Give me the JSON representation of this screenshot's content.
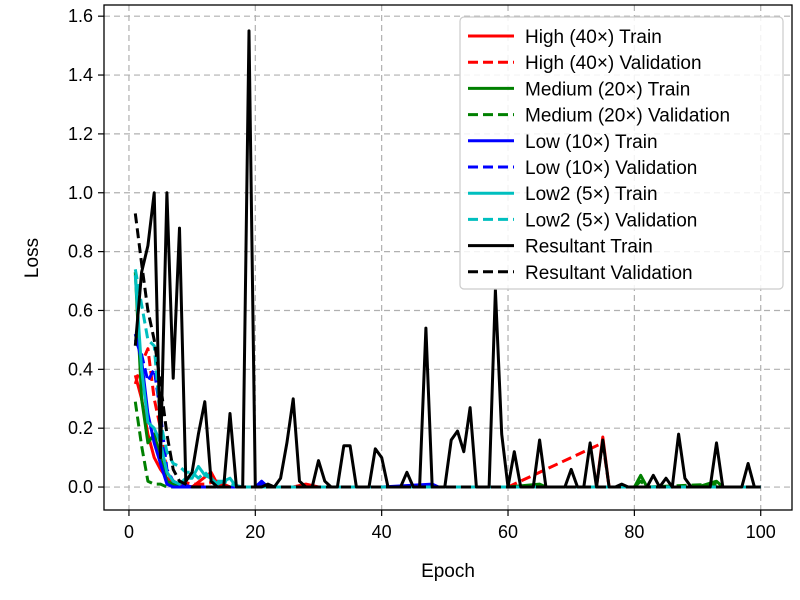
{
  "chart_data": {
    "type": "line",
    "xlabel": "Epoch",
    "ylabel": "Loss",
    "xlim": [
      -3.95,
      104.95
    ],
    "ylim": [
      -0.078,
      1.638
    ],
    "xticks": [
      0,
      20,
      40,
      60,
      80,
      100
    ],
    "yticks": [
      0.0,
      0.2,
      0.4,
      0.6,
      0.8,
      1.0,
      1.2,
      1.4,
      1.6
    ],
    "xtick_labels": [
      "0",
      "20",
      "40",
      "60",
      "80",
      "100"
    ],
    "ytick_labels": [
      "0.0",
      "0.2",
      "0.4",
      "0.6",
      "0.8",
      "1.0",
      "1.2",
      "1.4",
      "1.6"
    ],
    "grid": true,
    "legend_position": "top-right",
    "series": [
      {
        "name": "High (40×) Train",
        "color": "#ff0000",
        "style": "solid",
        "points": [
          [
            1,
            0.38
          ],
          [
            2,
            0.3
          ],
          [
            3,
            0.18
          ],
          [
            4,
            0.1
          ],
          [
            5,
            0.06
          ],
          [
            6,
            0.03
          ],
          [
            7,
            0.02
          ],
          [
            8,
            0.01
          ],
          [
            10,
            0.0
          ],
          [
            13,
            0.05
          ],
          [
            14,
            0.01
          ],
          [
            16,
            0.0
          ],
          [
            20,
            0.0
          ],
          [
            26,
            0.0
          ],
          [
            28,
            0.01
          ],
          [
            30,
            0.0
          ],
          [
            60,
            0.0
          ],
          [
            74,
            0.0
          ],
          [
            75,
            0.17
          ],
          [
            76,
            0.0
          ],
          [
            80,
            0.0
          ],
          [
            90,
            0.0
          ],
          [
            100,
            0.0
          ]
        ]
      },
      {
        "name": "High (40×) Validation",
        "color": "#ff0000",
        "style": "dashed",
        "points": [
          [
            1,
            0.35
          ],
          [
            2,
            0.42
          ],
          [
            3,
            0.47
          ],
          [
            4,
            0.3
          ],
          [
            5,
            0.2
          ],
          [
            6,
            0.05
          ],
          [
            7,
            0.02
          ],
          [
            8,
            0.02
          ],
          [
            10,
            0.01
          ],
          [
            12,
            0.01
          ],
          [
            14,
            0.02
          ],
          [
            16,
            0.0
          ],
          [
            20,
            0.0
          ],
          [
            30,
            0.0
          ],
          [
            40,
            0.0
          ],
          [
            60,
            0.0
          ],
          [
            75,
            0.15
          ],
          [
            76,
            0.0
          ],
          [
            100,
            0.0
          ]
        ]
      },
      {
        "name": "Medium (20×) Train",
        "color": "#008000",
        "style": "solid",
        "points": [
          [
            1,
            0.73
          ],
          [
            2,
            0.3
          ],
          [
            3,
            0.15
          ],
          [
            4,
            0.18
          ],
          [
            5,
            0.1
          ],
          [
            6,
            0.02
          ],
          [
            7,
            0.01
          ],
          [
            8,
            0.0
          ],
          [
            10,
            0.0
          ],
          [
            20,
            0.0
          ],
          [
            40,
            0.0
          ],
          [
            60,
            0.0
          ],
          [
            65,
            0.01
          ],
          [
            66,
            0.0
          ],
          [
            80,
            0.0
          ],
          [
            81,
            0.04
          ],
          [
            82,
            0.0
          ],
          [
            90,
            0.0
          ],
          [
            93,
            0.02
          ],
          [
            94,
            0.0
          ],
          [
            100,
            0.0
          ]
        ]
      },
      {
        "name": "Medium (20×) Validation",
        "color": "#008000",
        "style": "dashed",
        "points": [
          [
            1,
            0.29
          ],
          [
            2,
            0.14
          ],
          [
            3,
            0.02
          ],
          [
            4,
            0.01
          ],
          [
            5,
            0.01
          ],
          [
            6,
            0.0
          ],
          [
            10,
            0.0
          ],
          [
            20,
            0.0
          ],
          [
            40,
            0.0
          ],
          [
            60,
            0.0
          ],
          [
            80,
            0.0
          ],
          [
            81,
            0.02
          ],
          [
            82,
            0.0
          ],
          [
            93,
            0.01
          ],
          [
            94,
            0.0
          ],
          [
            100,
            0.0
          ]
        ]
      },
      {
        "name": "Low (10×) Train",
        "color": "#0000ff",
        "style": "solid",
        "points": [
          [
            1,
            0.52
          ],
          [
            2,
            0.43
          ],
          [
            3,
            0.25
          ],
          [
            4,
            0.15
          ],
          [
            5,
            0.08
          ],
          [
            6,
            0.01
          ],
          [
            7,
            0.0
          ],
          [
            10,
            0.0
          ],
          [
            20,
            0.0
          ],
          [
            21,
            0.02
          ],
          [
            22,
            0.0
          ],
          [
            40,
            0.0
          ],
          [
            48,
            0.01
          ],
          [
            49,
            0.0
          ],
          [
            60,
            0.0
          ],
          [
            80,
            0.0
          ],
          [
            100,
            0.0
          ]
        ]
      },
      {
        "name": "Low (10×) Validation",
        "color": "#0000ff",
        "style": "dashed",
        "points": [
          [
            1,
            0.5
          ],
          [
            2,
            0.45
          ],
          [
            3,
            0.36
          ],
          [
            4,
            0.4
          ],
          [
            5,
            0.25
          ],
          [
            6,
            0.06
          ],
          [
            7,
            0.02
          ],
          [
            8,
            0.01
          ],
          [
            10,
            0.0
          ],
          [
            20,
            0.0
          ],
          [
            21,
            0.01
          ],
          [
            22,
            0.0
          ],
          [
            40,
            0.0
          ],
          [
            60,
            0.0
          ],
          [
            100,
            0.0
          ]
        ]
      },
      {
        "name": "Low2 (5×) Train",
        "color": "#00bfbf",
        "style": "solid",
        "points": [
          [
            1,
            0.72
          ],
          [
            2,
            0.4
          ],
          [
            3,
            0.22
          ],
          [
            4,
            0.2
          ],
          [
            5,
            0.15
          ],
          [
            6,
            0.05
          ],
          [
            7,
            0.02
          ],
          [
            8,
            0.01
          ],
          [
            9,
            0.03
          ],
          [
            10,
            0.03
          ],
          [
            11,
            0.07
          ],
          [
            12,
            0.04
          ],
          [
            13,
            0.03
          ],
          [
            14,
            0.01
          ],
          [
            16,
            0.03
          ],
          [
            17,
            0.0
          ],
          [
            20,
            0.0
          ],
          [
            40,
            0.0
          ],
          [
            60,
            0.0
          ],
          [
            100,
            0.0
          ]
        ]
      },
      {
        "name": "Low2 (5×) Validation",
        "color": "#00bfbf",
        "style": "dashed",
        "points": [
          [
            1,
            0.74
          ],
          [
            2,
            0.62
          ],
          [
            3,
            0.5
          ],
          [
            4,
            0.48
          ],
          [
            5,
            0.22
          ],
          [
            6,
            0.12
          ],
          [
            7,
            0.08
          ],
          [
            8,
            0.07
          ],
          [
            9,
            0.05
          ],
          [
            10,
            0.05
          ],
          [
            11,
            0.03
          ],
          [
            12,
            0.05
          ],
          [
            13,
            0.03
          ],
          [
            14,
            0.02
          ],
          [
            15,
            0.02
          ],
          [
            16,
            0.01
          ],
          [
            18,
            0.0
          ],
          [
            20,
            0.0
          ],
          [
            40,
            0.0
          ],
          [
            60,
            0.0
          ],
          [
            100,
            0.0
          ]
        ]
      },
      {
        "name": "Resultant Train",
        "color": "#000000",
        "style": "solid",
        "points": [
          [
            1,
            0.48
          ],
          [
            2,
            0.73
          ],
          [
            3,
            0.82
          ],
          [
            4,
            1.0
          ],
          [
            5,
            0.1
          ],
          [
            6,
            1.0
          ],
          [
            7,
            0.37
          ],
          [
            8,
            0.88
          ],
          [
            9,
            0.02
          ],
          [
            10,
            0.05
          ],
          [
            11,
            0.18
          ],
          [
            12,
            0.29
          ],
          [
            13,
            0.02
          ],
          [
            14,
            0.0
          ],
          [
            15,
            0.0
          ],
          [
            16,
            0.25
          ],
          [
            17,
            0.0
          ],
          [
            18,
            0.0
          ],
          [
            19,
            1.55
          ],
          [
            20,
            0.0
          ],
          [
            21,
            0.0
          ],
          [
            22,
            0.01
          ],
          [
            23,
            0.0
          ],
          [
            24,
            0.03
          ],
          [
            25,
            0.15
          ],
          [
            26,
            0.3
          ],
          [
            27,
            0.02
          ],
          [
            28,
            0.0
          ],
          [
            29,
            0.0
          ],
          [
            30,
            0.09
          ],
          [
            31,
            0.02
          ],
          [
            32,
            0.0
          ],
          [
            33,
            0.0
          ],
          [
            34,
            0.14
          ],
          [
            35,
            0.14
          ],
          [
            36,
            0.0
          ],
          [
            37,
            0.0
          ],
          [
            38,
            0.0
          ],
          [
            39,
            0.13
          ],
          [
            40,
            0.1
          ],
          [
            41,
            0.0
          ],
          [
            42,
            0.0
          ],
          [
            43,
            0.0
          ],
          [
            44,
            0.05
          ],
          [
            45,
            0.0
          ],
          [
            46,
            0.0
          ],
          [
            47,
            0.54
          ],
          [
            48,
            0.0
          ],
          [
            49,
            0.0
          ],
          [
            50,
            0.0
          ],
          [
            51,
            0.16
          ],
          [
            52,
            0.19
          ],
          [
            53,
            0.12
          ],
          [
            54,
            0.27
          ],
          [
            55,
            0.0
          ],
          [
            56,
            0.0
          ],
          [
            57,
            0.0
          ],
          [
            58,
            0.67
          ],
          [
            59,
            0.18
          ],
          [
            60,
            0.0
          ],
          [
            61,
            0.12
          ],
          [
            62,
            0.0
          ],
          [
            63,
            0.0
          ],
          [
            64,
            0.0
          ],
          [
            65,
            0.16
          ],
          [
            66,
            0.0
          ],
          [
            67,
            0.0
          ],
          [
            68,
            0.0
          ],
          [
            69,
            0.0
          ],
          [
            70,
            0.06
          ],
          [
            71,
            0.0
          ],
          [
            72,
            0.0
          ],
          [
            73,
            0.15
          ],
          [
            74,
            0.0
          ],
          [
            75,
            0.16
          ],
          [
            76,
            0.0
          ],
          [
            77,
            0.0
          ],
          [
            78,
            0.01
          ],
          [
            79,
            0.0
          ],
          [
            80,
            0.0
          ],
          [
            81,
            0.0
          ],
          [
            82,
            0.0
          ],
          [
            83,
            0.04
          ],
          [
            84,
            0.0
          ],
          [
            85,
            0.03
          ],
          [
            86,
            0.0
          ],
          [
            87,
            0.18
          ],
          [
            88,
            0.03
          ],
          [
            89,
            0.0
          ],
          [
            90,
            0.0
          ],
          [
            91,
            0.0
          ],
          [
            92,
            0.0
          ],
          [
            93,
            0.15
          ],
          [
            94,
            0.0
          ],
          [
            95,
            0.0
          ],
          [
            96,
            0.0
          ],
          [
            97,
            0.0
          ],
          [
            98,
            0.08
          ],
          [
            99,
            0.0
          ],
          [
            100,
            0.0
          ]
        ]
      },
      {
        "name": "Resultant Validation",
        "color": "#000000",
        "style": "dashed",
        "points": [
          [
            1,
            0.93
          ],
          [
            2,
            0.76
          ],
          [
            3,
            0.6
          ],
          [
            4,
            0.5
          ],
          [
            5,
            0.35
          ],
          [
            6,
            0.18
          ],
          [
            7,
            0.06
          ],
          [
            8,
            0.02
          ],
          [
            9,
            0.01
          ],
          [
            10,
            0.0
          ],
          [
            12,
            0.0
          ],
          [
            20,
            0.0
          ],
          [
            40,
            0.0
          ],
          [
            60,
            0.0
          ],
          [
            80,
            0.0
          ],
          [
            100,
            0.0
          ]
        ]
      }
    ]
  }
}
